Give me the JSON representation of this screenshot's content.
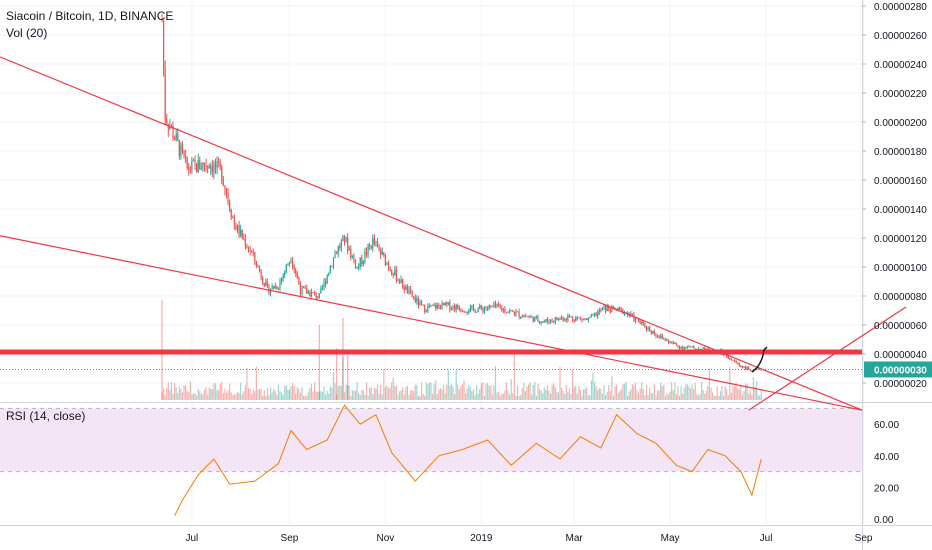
{
  "header": {
    "symbol_title": "Siacoin / Bitcoin, 1D, BINANCE",
    "volume_label": "Vol (20)",
    "rsi_label": "RSI (14, close)"
  },
  "colors": {
    "up": "#26a69a",
    "down": "#ef5350",
    "trendline": "#f23645",
    "support": "#f23645",
    "rsi_line": "#f57c00",
    "rsi_band": "#f3e5f5",
    "price_tag_bg": "#26a69a",
    "dotted_price": "#26a69a",
    "sketch": "#131722"
  },
  "chart_data": {
    "type": "candlestick",
    "price_axis_ticks": [
      "0.00000280",
      "0.00000260",
      "0.00000240",
      "0.00000220",
      "0.00000200",
      "0.00000180",
      "0.00000160",
      "0.00000140",
      "0.00000120",
      "0.00000100",
      "0.00000080",
      "0.00000060",
      "0.00000040",
      "0.00000020"
    ],
    "rsi_axis_ticks": [
      "60.00",
      "40.00",
      "20.00",
      "0.00"
    ],
    "time_labels": [
      "Jul",
      "Sep",
      "Nov",
      "2019",
      "Mar",
      "May",
      "Jul",
      "Sep"
    ],
    "last_price": "0.00000030",
    "horizontal_level": 4.2e-07,
    "price_path": [
      {
        "date": "2018-06-12",
        "price": 2.7e-06
      },
      {
        "date": "2018-06-14",
        "price": 2.05e-06
      },
      {
        "date": "2018-06-20",
        "price": 1.9e-06
      },
      {
        "date": "2018-06-28",
        "price": 1.68e-06
      },
      {
        "date": "2018-07-05",
        "price": 1.7e-06
      },
      {
        "date": "2018-07-12",
        "price": 1.72e-06
      },
      {
        "date": "2018-07-20",
        "price": 1.65e-06
      },
      {
        "date": "2018-07-28",
        "price": 1.3e-06
      },
      {
        "date": "2018-08-08",
        "price": 1.1e-06
      },
      {
        "date": "2018-08-18",
        "price": 8.5e-07
      },
      {
        "date": "2018-08-25",
        "price": 8.8e-07
      },
      {
        "date": "2018-09-02",
        "price": 1.08e-06
      },
      {
        "date": "2018-09-08",
        "price": 8.5e-07
      },
      {
        "date": "2018-09-20",
        "price": 8e-07
      },
      {
        "date": "2018-09-30",
        "price": 1.1e-06
      },
      {
        "date": "2018-10-06",
        "price": 1.2e-06
      },
      {
        "date": "2018-10-14",
        "price": 1e-06
      },
      {
        "date": "2018-10-24",
        "price": 1.18e-06
      },
      {
        "date": "2018-11-04",
        "price": 1e-06
      },
      {
        "date": "2018-11-14",
        "price": 8.5e-07
      },
      {
        "date": "2018-11-25",
        "price": 7.2e-07
      },
      {
        "date": "2018-12-10",
        "price": 7.4e-07
      },
      {
        "date": "2018-12-25",
        "price": 7.1e-07
      },
      {
        "date": "2019-01-10",
        "price": 7.3e-07
      },
      {
        "date": "2019-01-25",
        "price": 6.8e-07
      },
      {
        "date": "2019-02-10",
        "price": 6.3e-07
      },
      {
        "date": "2019-02-25",
        "price": 6.6e-07
      },
      {
        "date": "2019-03-10",
        "price": 6.4e-07
      },
      {
        "date": "2019-03-20",
        "price": 7.2e-07
      },
      {
        "date": "2019-04-02",
        "price": 7e-07
      },
      {
        "date": "2019-04-12",
        "price": 6.2e-07
      },
      {
        "date": "2019-04-25",
        "price": 5.2e-07
      },
      {
        "date": "2019-05-06",
        "price": 4.6e-07
      },
      {
        "date": "2019-05-20",
        "price": 4.4e-07
      },
      {
        "date": "2019-06-02",
        "price": 4.2e-07
      },
      {
        "date": "2019-06-14",
        "price": 3.3e-07
      },
      {
        "date": "2019-06-22",
        "price": 2.9e-07
      },
      {
        "date": "2019-06-28",
        "price": 3e-07
      }
    ],
    "rsi_path": [
      {
        "date": "2018-06-20",
        "value": 2
      },
      {
        "date": "2018-06-25",
        "value": 12
      },
      {
        "date": "2018-07-05",
        "value": 28
      },
      {
        "date": "2018-07-15",
        "value": 38
      },
      {
        "date": "2018-07-25",
        "value": 22
      },
      {
        "date": "2018-08-10",
        "value": 24
      },
      {
        "date": "2018-08-25",
        "value": 35
      },
      {
        "date": "2018-09-02",
        "value": 56
      },
      {
        "date": "2018-09-12",
        "value": 44
      },
      {
        "date": "2018-09-25",
        "value": 50
      },
      {
        "date": "2018-10-06",
        "value": 72
      },
      {
        "date": "2018-10-16",
        "value": 60
      },
      {
        "date": "2018-10-26",
        "value": 66
      },
      {
        "date": "2018-11-05",
        "value": 42
      },
      {
        "date": "2018-11-20",
        "value": 24
      },
      {
        "date": "2018-12-05",
        "value": 40
      },
      {
        "date": "2018-12-20",
        "value": 44
      },
      {
        "date": "2019-01-05",
        "value": 50
      },
      {
        "date": "2019-01-20",
        "value": 34
      },
      {
        "date": "2019-02-05",
        "value": 48
      },
      {
        "date": "2019-02-20",
        "value": 38
      },
      {
        "date": "2019-03-05",
        "value": 52
      },
      {
        "date": "2019-03-18",
        "value": 45
      },
      {
        "date": "2019-03-28",
        "value": 66
      },
      {
        "date": "2019-04-10",
        "value": 54
      },
      {
        "date": "2019-04-22",
        "value": 48
      },
      {
        "date": "2019-05-05",
        "value": 34
      },
      {
        "date": "2019-05-15",
        "value": 30
      },
      {
        "date": "2019-05-25",
        "value": 44
      },
      {
        "date": "2019-06-05",
        "value": 40
      },
      {
        "date": "2019-06-15",
        "value": 30
      },
      {
        "date": "2019-06-22",
        "value": 15
      },
      {
        "date": "2019-06-28",
        "value": 38
      }
    ],
    "trendlines": [
      {
        "name": "upper-descending",
        "from": {
          "date": "2018-03-01",
          "price": 2.45e-06
        },
        "to": {
          "date": "2019-08-31",
          "price": 2e-08
        }
      },
      {
        "name": "lower-descending",
        "from": {
          "date": "2018-03-01",
          "price": 1.22e-06
        },
        "to": {
          "date": "2019-08-31",
          "price": 2e-08
        }
      },
      {
        "name": "breakout-line",
        "from": {
          "date": "2019-06-20",
          "price": 2e-08
        },
        "to": {
          "date": "2019-09-28",
          "price": 7.3e-07
        }
      }
    ]
  }
}
